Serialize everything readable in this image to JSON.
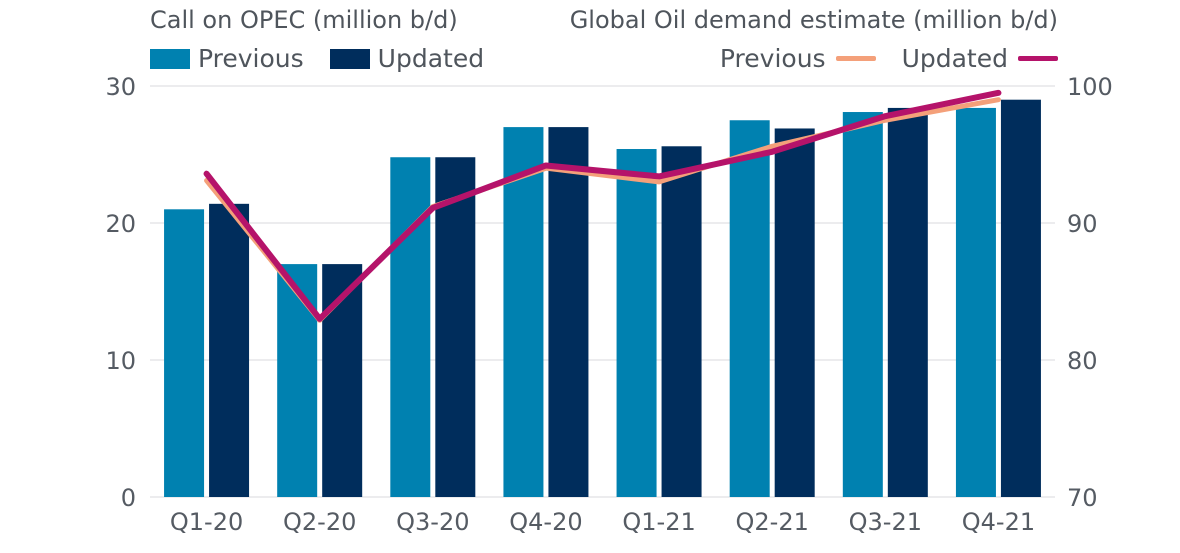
{
  "chart_data": {
    "type": "bar",
    "categories": [
      "Q1-20",
      "Q2-20",
      "Q3-20",
      "Q4-20",
      "Q1-21",
      "Q2-21",
      "Q3-21",
      "Q4-21"
    ],
    "left_axis": {
      "title": "Call on OPEC (million b/d)",
      "ylim": [
        0,
        30
      ],
      "ticks": [
        "0",
        "10",
        "20",
        "30"
      ]
    },
    "right_axis": {
      "title": "Global Oil demand estimate (million b/d)",
      "ylim": [
        70,
        100
      ],
      "ticks": [
        "70",
        "80",
        "90",
        "100"
      ]
    },
    "bar_series": [
      {
        "name": "Previous",
        "color": "#0081b0",
        "values": [
          21.0,
          17.0,
          24.8,
          27.0,
          25.4,
          27.5,
          28.1,
          28.4
        ]
      },
      {
        "name": "Updated",
        "color": "#002d5c",
        "values": [
          21.4,
          17.0,
          24.8,
          27.0,
          25.6,
          26.9,
          28.4,
          29.0
        ]
      }
    ],
    "line_series": [
      {
        "name": "Previous",
        "color": "#f4a07a",
        "values": [
          93.1,
          82.9,
          91.2,
          94.0,
          93.0,
          95.6,
          97.5,
          99.0
        ]
      },
      {
        "name": "Updated",
        "color": "#b5136a",
        "values": [
          93.6,
          83.0,
          91.1,
          94.2,
          93.4,
          95.2,
          97.8,
          99.5
        ]
      }
    ],
    "grid": "horizontal",
    "legend_placement": "top"
  }
}
